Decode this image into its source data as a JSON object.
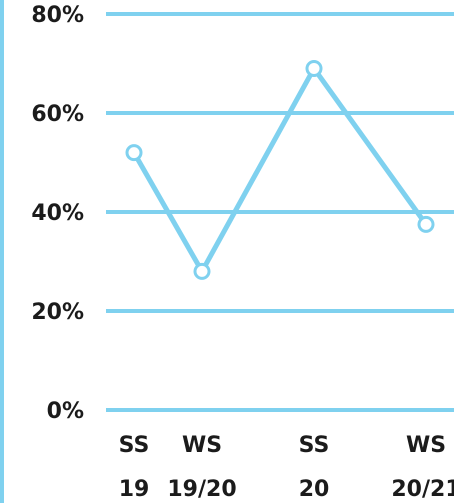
{
  "colors": {
    "accent": "#7fd1ef",
    "text": "#1b1b1b",
    "marker_fill": "#ffffff"
  },
  "chart_data": {
    "type": "line",
    "title": "",
    "xlabel": "",
    "ylabel": "",
    "categories": [
      "SS 19",
      "WS 19/20",
      "SS 20",
      "WS 20/21"
    ],
    "category_lines": [
      [
        "SS",
        "19"
      ],
      [
        "WS",
        "19/20"
      ],
      [
        "SS",
        "20"
      ],
      [
        "WS",
        "20/21"
      ]
    ],
    "series": [
      {
        "values": [
          52,
          28,
          69,
          37.5
        ]
      }
    ],
    "ylim": [
      0,
      80
    ],
    "yticks": [
      0,
      20,
      40,
      60,
      80
    ],
    "ytick_labels": [
      "0%",
      "20%",
      "40%",
      "60%",
      "80%"
    ],
    "grid": true,
    "legend": "none"
  }
}
